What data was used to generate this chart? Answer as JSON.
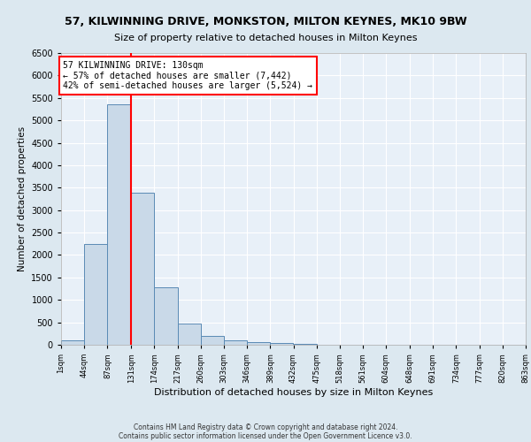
{
  "title1": "57, KILWINNING DRIVE, MONKSTON, MILTON KEYNES, MK10 9BW",
  "title2": "Size of property relative to detached houses in Milton Keynes",
  "xlabel": "Distribution of detached houses by size in Milton Keynes",
  "ylabel": "Number of detached properties",
  "bin_edges": [
    1,
    44,
    87,
    131,
    174,
    217,
    260,
    303,
    346,
    389,
    432,
    475,
    518,
    561,
    604,
    648,
    691,
    734,
    777,
    820,
    863
  ],
  "bar_heights": [
    100,
    2250,
    5350,
    3380,
    1280,
    480,
    200,
    100,
    60,
    30,
    15,
    8,
    5,
    3,
    2,
    2,
    1,
    1,
    1,
    1
  ],
  "bar_color": "#c9d9e8",
  "bar_edgecolor": "#5a8ab5",
  "vline_x": 130,
  "vline_color": "red",
  "annotation_line1": "57 KILWINNING DRIVE: 130sqm",
  "annotation_line2": "← 57% of detached houses are smaller (7,442)",
  "annotation_line3": "42% of semi-detached houses are larger (5,524) →",
  "annotation_box_edgecolor": "red",
  "ylim": [
    0,
    6500
  ],
  "yticks": [
    0,
    500,
    1000,
    1500,
    2000,
    2500,
    3000,
    3500,
    4000,
    4500,
    5000,
    5500,
    6000,
    6500
  ],
  "xtick_labels": [
    "1sqm",
    "44sqm",
    "87sqm",
    "131sqm",
    "174sqm",
    "217sqm",
    "260sqm",
    "303sqm",
    "346sqm",
    "389sqm",
    "432sqm",
    "475sqm",
    "518sqm",
    "561sqm",
    "604sqm",
    "648sqm",
    "691sqm",
    "734sqm",
    "777sqm",
    "820sqm",
    "863sqm"
  ],
  "footer_line1": "Contains HM Land Registry data © Crown copyright and database right 2024.",
  "footer_line2": "Contains public sector information licensed under the Open Government Licence v3.0.",
  "bg_color": "#dce8f0",
  "plot_bg_color": "#e8f0f8"
}
